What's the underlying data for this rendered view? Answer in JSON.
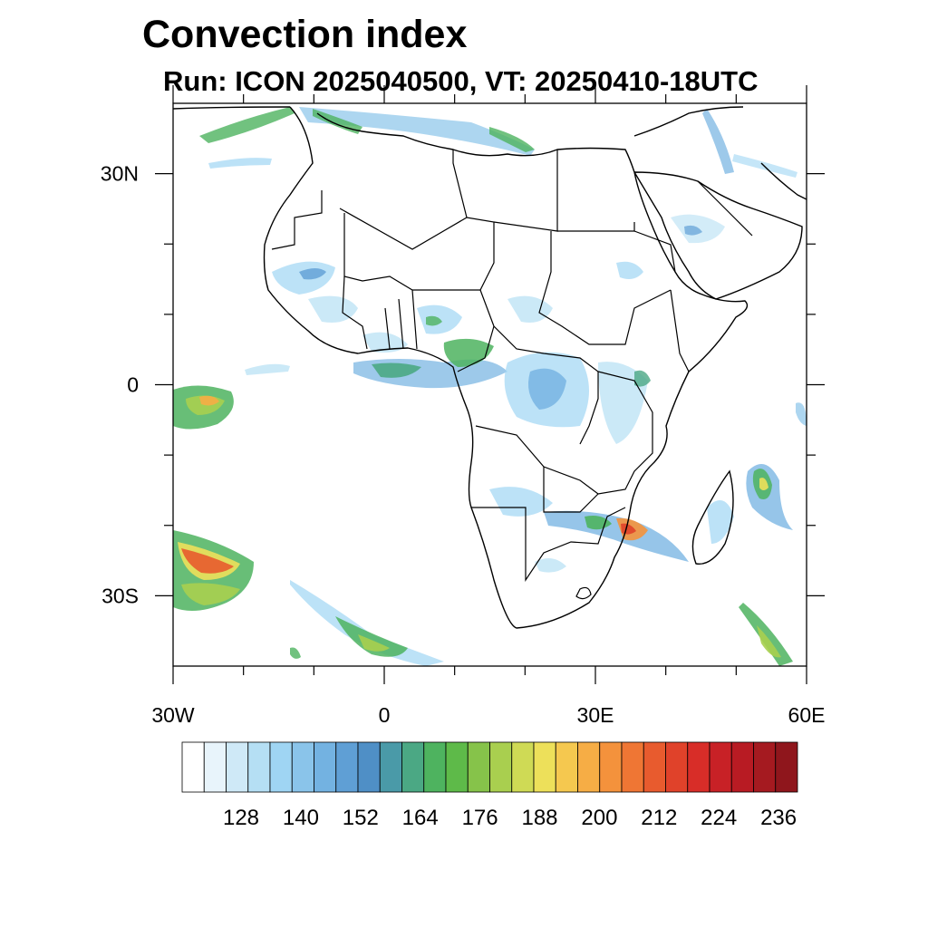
{
  "title": "Convection index",
  "subtitle": "Run: ICON 2025040500,  VT: 20250410-18UTC",
  "map": {
    "lon_range": [
      -30,
      60
    ],
    "lat_range": [
      -40,
      40
    ],
    "x_ticks": [
      {
        "lon": -30,
        "label": "30W"
      },
      {
        "lon": 0,
        "label": "0"
      },
      {
        "lon": 30,
        "label": "30E"
      },
      {
        "lon": 60,
        "label": "60E"
      }
    ],
    "y_ticks": [
      {
        "lat": 30,
        "label": "30N"
      },
      {
        "lat": 0,
        "label": "0"
      },
      {
        "lat": -30,
        "label": "30S"
      }
    ]
  },
  "colorbar": {
    "colors": [
      "#ffffff",
      "#e8f4fb",
      "#cfe9f7",
      "#b5dff4",
      "#9fd5f3",
      "#8ac4ea",
      "#73b2e1",
      "#5f9fd5",
      "#4f8fc6",
      "#4a9aa8",
      "#4ba884",
      "#4eb35f",
      "#5eba49",
      "#86c34a",
      "#a9cf4f",
      "#cfda55",
      "#ede05a",
      "#f5c84f",
      "#f6ad45",
      "#f4923c",
      "#ef7634",
      "#e85b2e",
      "#e0422a",
      "#d82d28",
      "#c82126",
      "#b81b23",
      "#a51a20",
      "#8f161c"
    ],
    "labels": [
      "128",
      "140",
      "152",
      "164",
      "176",
      "188",
      "200",
      "212",
      "224",
      "236"
    ]
  },
  "colors": {
    "coastline": "#000000",
    "frame": "#000000"
  }
}
